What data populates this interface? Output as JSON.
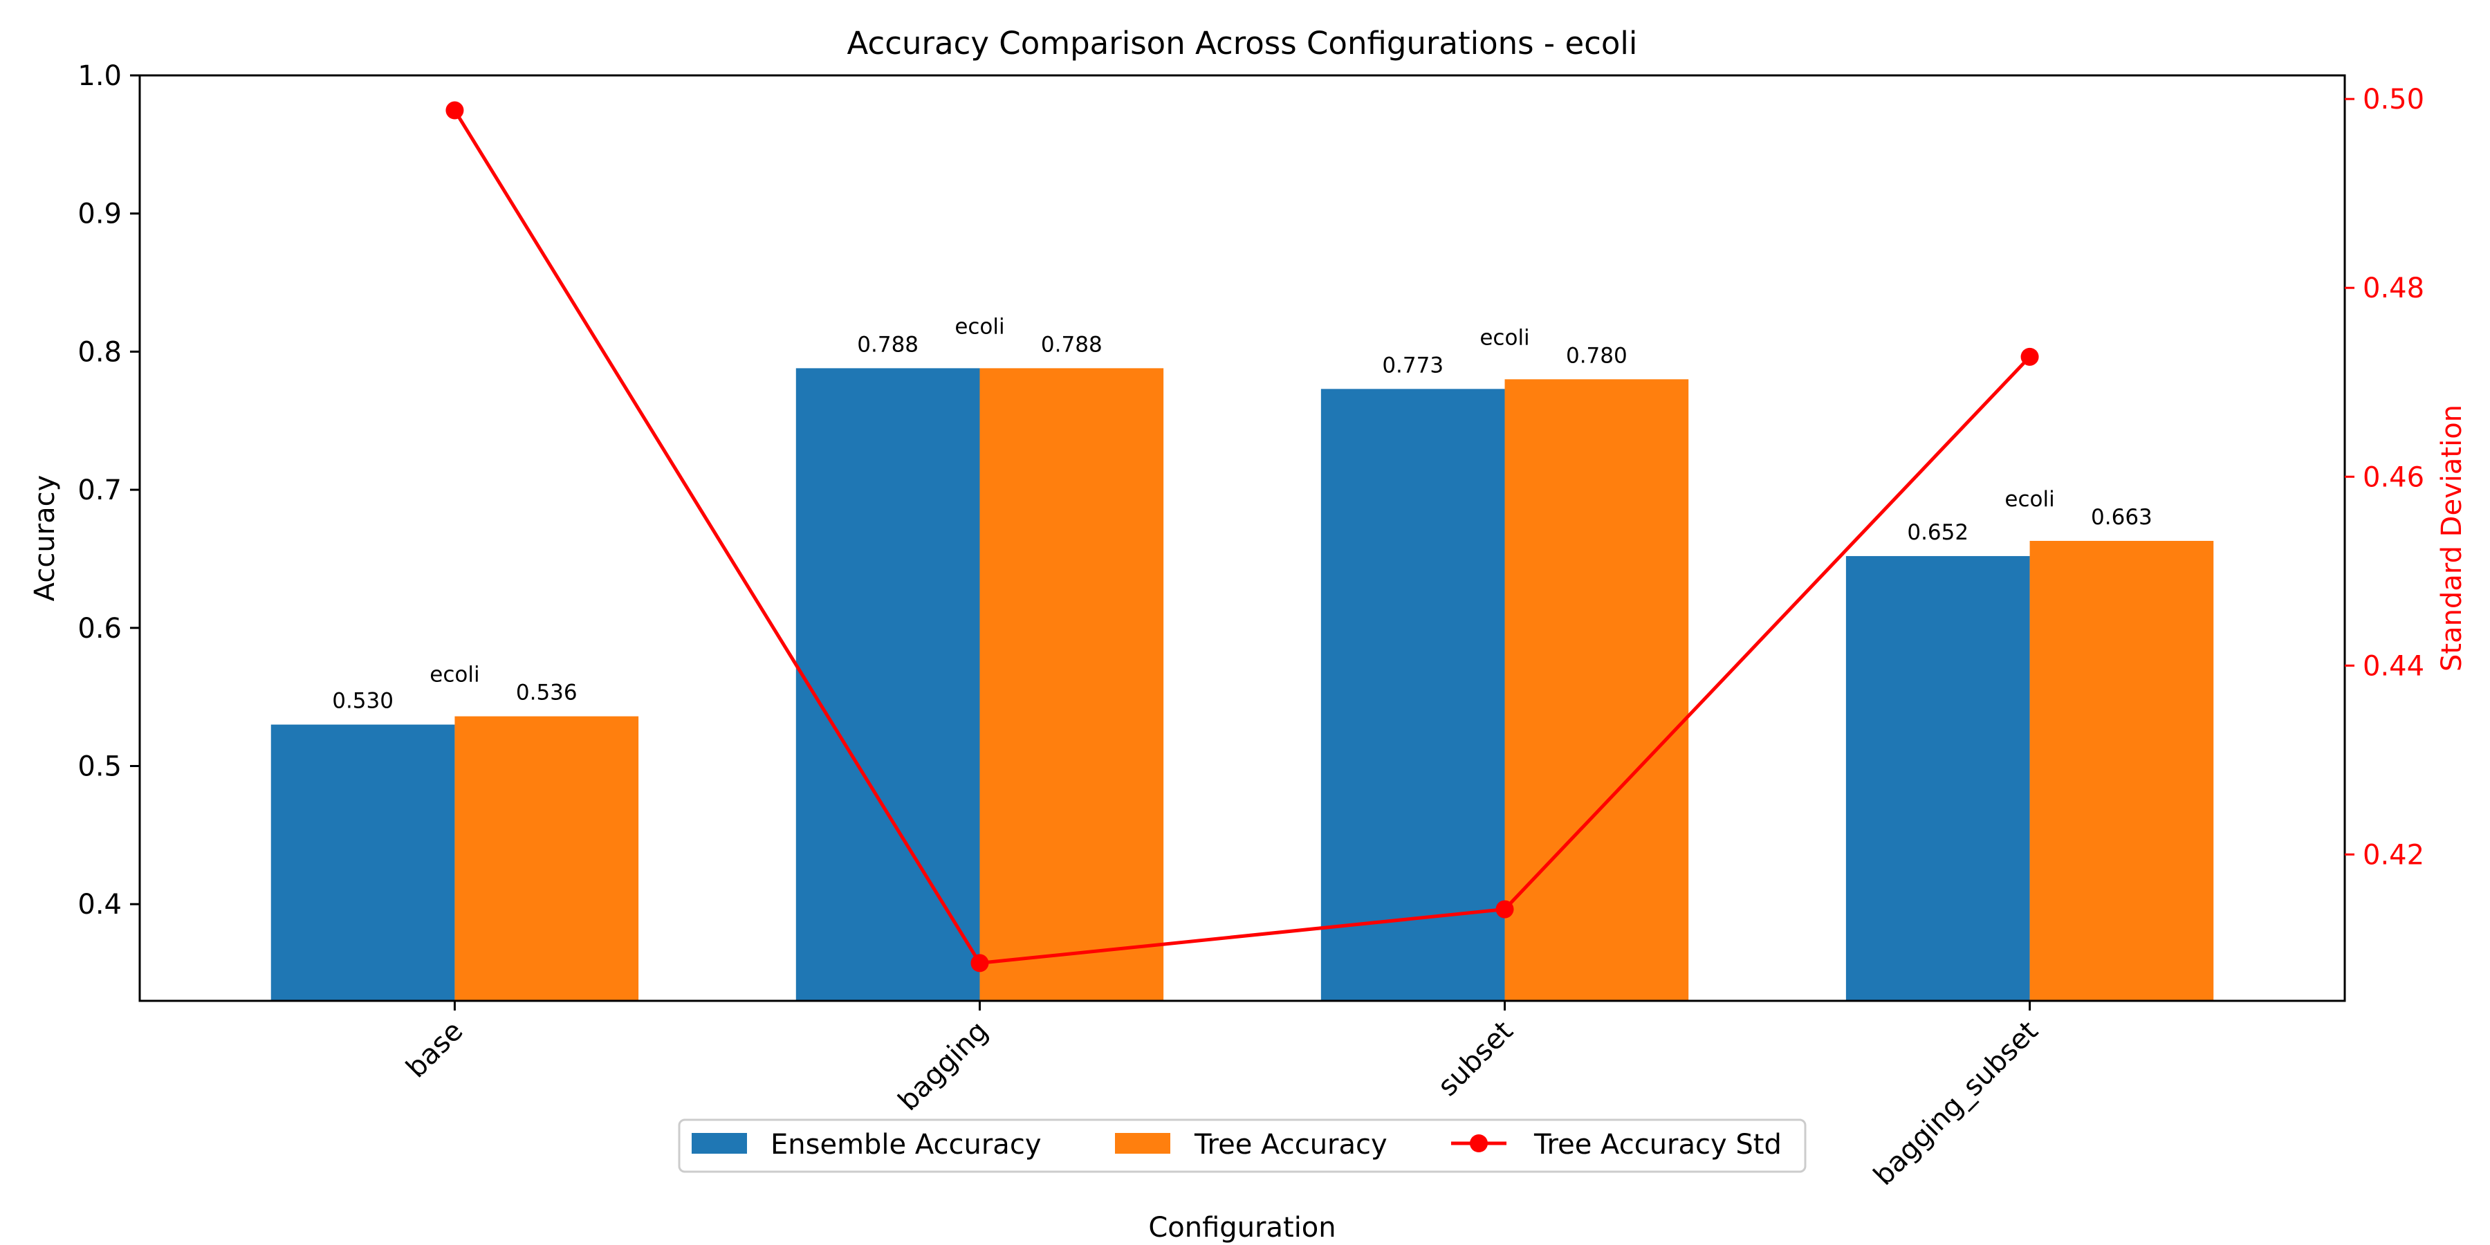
{
  "chart_data": {
    "type": "bar",
    "title": "Accuracy Comparison Across Configurations - ecoli",
    "xlabel": "Configuration",
    "ylabel": "Accuracy",
    "y2label": "Standard Deviation",
    "categories": [
      "base",
      "bagging",
      "subset",
      "bagging_subset"
    ],
    "ylim": [
      0.33,
      1.0
    ],
    "yticks": [
      "0.4",
      "0.5",
      "0.6",
      "0.7",
      "0.8",
      "0.9",
      "1.0"
    ],
    "y2lim": [
      0.4045,
      0.5025
    ],
    "y2ticks": [
      "0.42",
      "0.44",
      "0.46",
      "0.48",
      "0.50"
    ],
    "series": [
      {
        "name": "Ensemble Accuracy",
        "kind": "bar",
        "color": "#1f77b4",
        "values": [
          0.53,
          0.788,
          0.773,
          0.652
        ],
        "labels": [
          "0.530",
          "0.788",
          "0.773",
          "0.652"
        ]
      },
      {
        "name": "Tree Accuracy",
        "kind": "bar",
        "color": "#ff7f0e",
        "values": [
          0.536,
          0.788,
          0.78,
          0.663
        ],
        "labels": [
          "0.536",
          "0.788",
          "0.780",
          "0.663"
        ]
      },
      {
        "name": "Tree Accuracy Std",
        "kind": "line",
        "axis": "right",
        "color": "#ff0000",
        "values": [
          0.4988,
          0.4085,
          0.4142,
          0.4727
        ]
      }
    ],
    "annotations": [
      "ecoli",
      "ecoli",
      "ecoli",
      "ecoli"
    ],
    "legend": "bottom-center",
    "grid": false
  }
}
